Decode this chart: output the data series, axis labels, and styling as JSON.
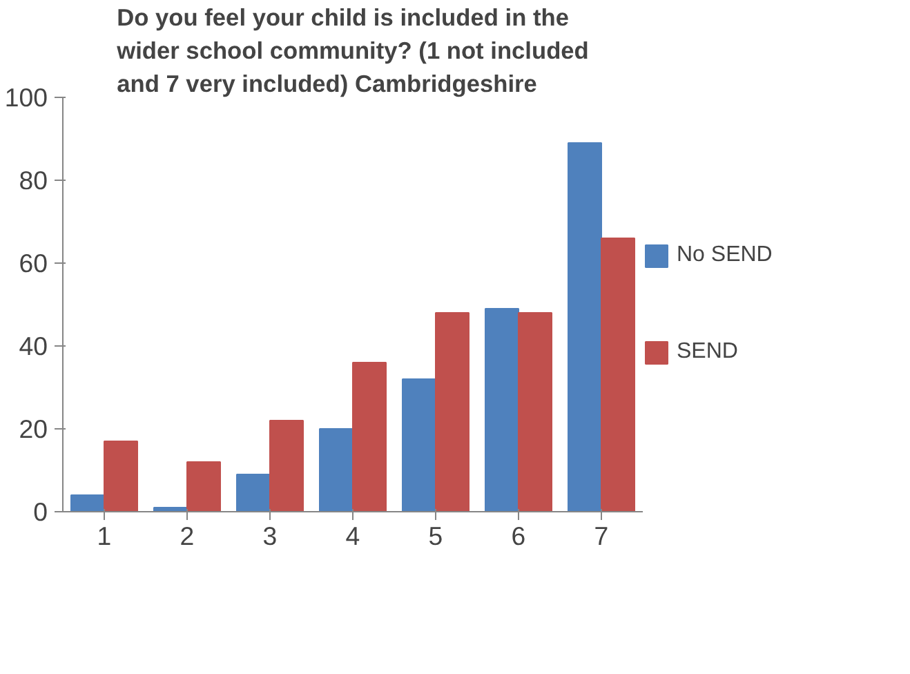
{
  "chart_data": {
    "type": "bar",
    "title": "Do you feel your child is included in the wider school community? (1 not included and 7 very included) Cambridgeshire",
    "categories": [
      "1",
      "2",
      "3",
      "4",
      "5",
      "6",
      "7"
    ],
    "series": [
      {
        "name": "No SEND",
        "color": "#4f81bd",
        "values": [
          4,
          1,
          9,
          20,
          32,
          49,
          89
        ]
      },
      {
        "name": "SEND",
        "color": "#c0504d",
        "values": [
          17,
          12,
          22,
          36,
          48,
          48,
          66
        ]
      }
    ],
    "ylim": [
      0,
      100
    ],
    "yticks": [
      0,
      20,
      40,
      60,
      80,
      100
    ],
    "grid": false,
    "legend": "right"
  }
}
